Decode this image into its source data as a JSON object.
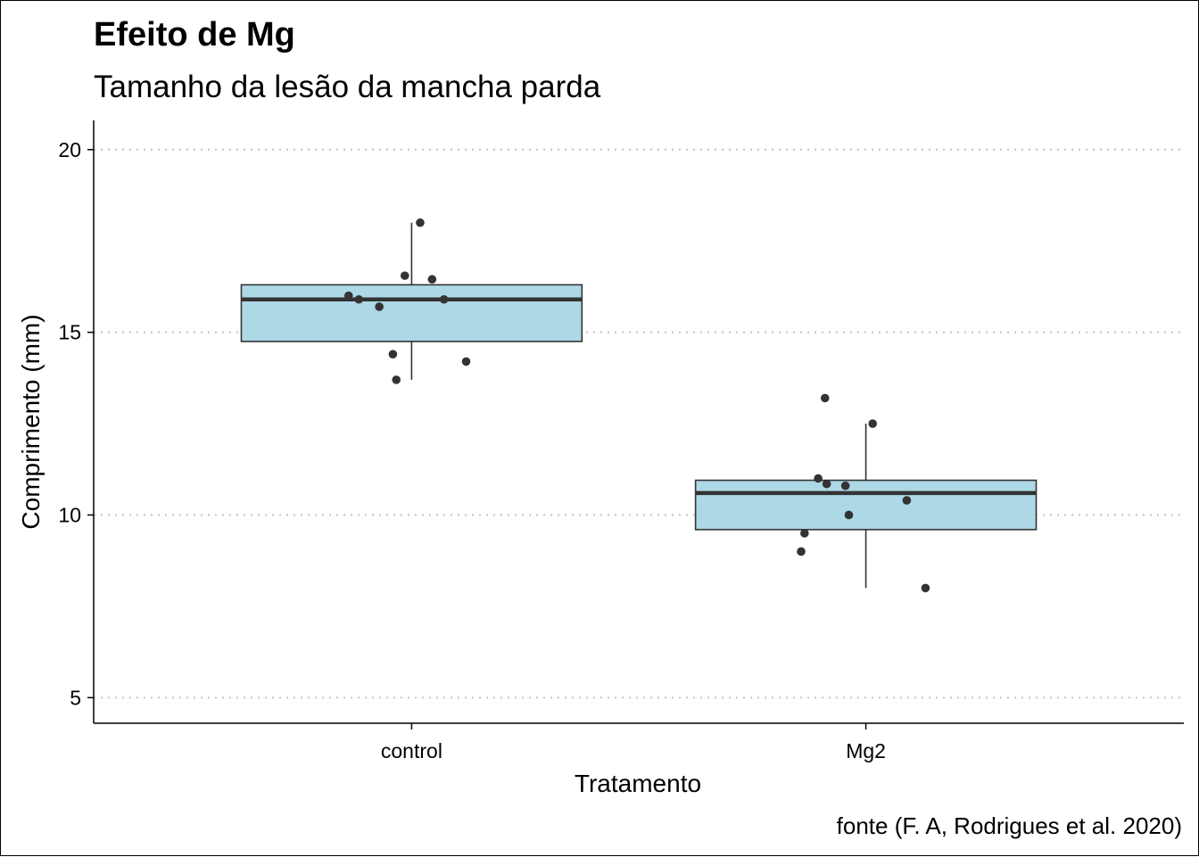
{
  "chart_data": {
    "type": "box",
    "title": "Efeito de Mg",
    "subtitle": "Tamanho da lesão da mancha parda",
    "xlabel": "Tratamento",
    "ylabel": "Comprimento (mm)",
    "caption": "fonte (F. A, Rodrigues et al. 2020)",
    "categories": [
      "control",
      "Mg2"
    ],
    "ylim": [
      4.3,
      20.8
    ],
    "yticks": [
      5,
      10,
      15,
      20
    ],
    "grid": "horizontal dotted",
    "colors": {
      "box_fill": "#add8e6",
      "box_line": "#333333",
      "point": "#333333",
      "grid": "#c8c8c8"
    },
    "boxes": [
      {
        "category": "control",
        "min": 13.7,
        "q1": 14.75,
        "median": 15.9,
        "q3": 16.3,
        "max": 18.0
      },
      {
        "category": "Mg2",
        "min": 8.0,
        "q1": 9.6,
        "median": 10.6,
        "q3": 10.95,
        "max": 12.5
      }
    ],
    "points": [
      {
        "category": "control",
        "jitter": 0.05,
        "y": 18.0
      },
      {
        "category": "control",
        "jitter": -0.04,
        "y": 16.55
      },
      {
        "category": "control",
        "jitter": 0.12,
        "y": 16.45
      },
      {
        "category": "control",
        "jitter": -0.37,
        "y": 16.0
      },
      {
        "category": "control",
        "jitter": -0.31,
        "y": 15.9
      },
      {
        "category": "control",
        "jitter": 0.19,
        "y": 15.9
      },
      {
        "category": "control",
        "jitter": -0.19,
        "y": 15.7
      },
      {
        "category": "control",
        "jitter": -0.11,
        "y": 14.4
      },
      {
        "category": "control",
        "jitter": 0.32,
        "y": 14.2
      },
      {
        "category": "control",
        "jitter": -0.09,
        "y": 13.7
      },
      {
        "category": "Mg2",
        "jitter": -0.24,
        "y": 13.2
      },
      {
        "category": "Mg2",
        "jitter": 0.04,
        "y": 12.5
      },
      {
        "category": "Mg2",
        "jitter": -0.28,
        "y": 11.0
      },
      {
        "category": "Mg2",
        "jitter": -0.23,
        "y": 10.85
      },
      {
        "category": "Mg2",
        "jitter": -0.12,
        "y": 10.8
      },
      {
        "category": "Mg2",
        "jitter": 0.24,
        "y": 10.4
      },
      {
        "category": "Mg2",
        "jitter": -0.1,
        "y": 10.0
      },
      {
        "category": "Mg2",
        "jitter": -0.36,
        "y": 9.5
      },
      {
        "category": "Mg2",
        "jitter": -0.38,
        "y": 9.0
      },
      {
        "category": "Mg2",
        "jitter": 0.35,
        "y": 8.0
      }
    ]
  }
}
